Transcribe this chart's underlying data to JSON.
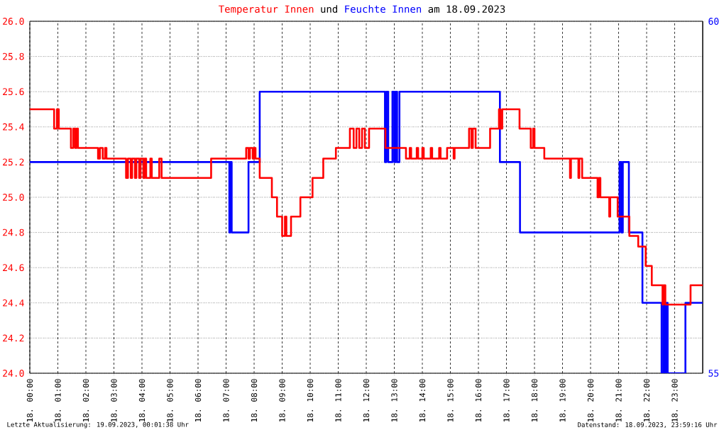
{
  "chart_data": {
    "type": "step",
    "annotations": [
      "und",
      "am 18.09.2023",
      "Letzte Aktualisierung: 19.09.2023, 00:01:38 Uhr",
      "Datenstand: 18.09.2023, 23:59:16 Uhr"
    ],
    "xlim": [
      "2023-09-18T00:00",
      "2023-09-19T00:00"
    ],
    "xticks": [
      {
        "value": "2023-09-18T00:00",
        "label": "18. 00:00"
      },
      {
        "value": "2023-09-18T01:00",
        "label": "18. 01:00"
      },
      {
        "value": "2023-09-18T02:00",
        "label": "18. 02:00"
      },
      {
        "value": "2023-09-18T03:00",
        "label": "18. 03:00"
      },
      {
        "value": "2023-09-18T04:00",
        "label": "18. 04:00"
      },
      {
        "value": "2023-09-18T05:00",
        "label": "18. 05:00"
      },
      {
        "value": "2023-09-18T06:00",
        "label": "18. 06:00"
      },
      {
        "value": "2023-09-18T07:00",
        "label": "18. 07:00"
      },
      {
        "value": "2023-09-18T08:00",
        "label": "18. 08:00"
      },
      {
        "value": "2023-09-18T09:00",
        "label": "18. 09:00"
      },
      {
        "value": "2023-09-18T10:00",
        "label": "18. 10:00"
      },
      {
        "value": "2023-09-18T11:00",
        "label": "18. 11:00"
      },
      {
        "value": "2023-09-18T12:00",
        "label": "18. 12:00"
      },
      {
        "value": "2023-09-18T13:00",
        "label": "18. 13:00"
      },
      {
        "value": "2023-09-18T14:00",
        "label": "18. 14:00"
      },
      {
        "value": "2023-09-18T15:00",
        "label": "18. 15:00"
      },
      {
        "value": "2023-09-18T16:00",
        "label": "18. 16:00"
      },
      {
        "value": "2023-09-18T17:00",
        "label": "18. 17:00"
      },
      {
        "value": "2023-09-18T18:00",
        "label": "18. 18:00"
      },
      {
        "value": "2023-09-18T19:00",
        "label": "18. 19:00"
      },
      {
        "value": "2023-09-18T20:00",
        "label": "18. 20:00"
      },
      {
        "value": "2023-09-18T21:00",
        "label": "18. 21:00"
      },
      {
        "value": "2023-09-18T22:00",
        "label": "18. 22:00"
      },
      {
        "value": "2023-09-18T23:00",
        "label": "18. 23:00"
      }
    ],
    "ylim": [
      24.0,
      26.0
    ],
    "yticks": [
      {
        "value": 24.0,
        "label": "24.0"
      },
      {
        "value": 24.2,
        "label": "24.2"
      },
      {
        "value": 24.4,
        "label": "24.4"
      },
      {
        "value": 24.6,
        "label": "24.6"
      },
      {
        "value": 24.8,
        "label": "24.8"
      },
      {
        "value": 25.0,
        "label": "25.0"
      },
      {
        "value": 25.2,
        "label": "25.2"
      },
      {
        "value": 25.4,
        "label": "25.4"
      },
      {
        "value": 25.6,
        "label": "25.6"
      },
      {
        "value": 25.8,
        "label": "25.8"
      },
      {
        "value": 26.0,
        "label": "26.0"
      }
    ],
    "y2lim": [
      55,
      60
    ],
    "y2ticks": [
      55,
      60
    ],
    "grid": true,
    "series": [
      {
        "name": "Temperatur Innen",
        "color": "#ff0000",
        "x": [
          "2023-09-18T00:00",
          "2023-09-18T00:52",
          "2023-09-18T00:58",
          "2023-09-18T01:02",
          "2023-09-18T01:28",
          "2023-09-18T01:33",
          "2023-09-18T01:37",
          "2023-09-18T01:40",
          "2023-09-18T01:43",
          "2023-09-18T02:26",
          "2023-09-18T02:30",
          "2023-09-18T02:36",
          "2023-09-18T02:41",
          "2023-09-18T02:44",
          "2023-09-18T03:26",
          "2023-09-18T03:30",
          "2023-09-18T03:36",
          "2023-09-18T03:39",
          "2023-09-18T03:45",
          "2023-09-18T03:48",
          "2023-09-18T03:54",
          "2023-09-18T03:57",
          "2023-09-18T04:03",
          "2023-09-18T04:06",
          "2023-09-18T04:09",
          "2023-09-18T04:18",
          "2023-09-18T04:21",
          "2023-09-18T04:37",
          "2023-09-18T04:42",
          "2023-09-18T06:28",
          "2023-09-18T07:43",
          "2023-09-18T07:48",
          "2023-09-18T07:51",
          "2023-09-18T07:57",
          "2023-09-18T08:00",
          "2023-09-18T08:03",
          "2023-09-18T08:12",
          "2023-09-18T08:38",
          "2023-09-18T08:49",
          "2023-09-18T09:00",
          "2023-09-18T09:06",
          "2023-09-18T09:09",
          "2023-09-18T09:19",
          "2023-09-18T09:39",
          "2023-09-18T10:05",
          "2023-09-18T10:28",
          "2023-09-18T10:55",
          "2023-09-18T11:25",
          "2023-09-18T11:33",
          "2023-09-18T11:39",
          "2023-09-18T11:45",
          "2023-09-18T11:51",
          "2023-09-18T11:57",
          "2023-09-18T12:06",
          "2023-09-18T12:41",
          "2023-09-18T13:25",
          "2023-09-18T13:33",
          "2023-09-18T13:36",
          "2023-09-18T13:48",
          "2023-09-18T13:51",
          "2023-09-18T14:00",
          "2023-09-18T14:03",
          "2023-09-18T14:18",
          "2023-09-18T14:21",
          "2023-09-18T14:36",
          "2023-09-18T14:39",
          "2023-09-18T14:53",
          "2023-09-18T15:07",
          "2023-09-18T15:09",
          "2023-09-18T15:40",
          "2023-09-18T15:45",
          "2023-09-18T15:48",
          "2023-09-18T15:54",
          "2023-09-18T16:25",
          "2023-09-18T16:44",
          "2023-09-18T16:47",
          "2023-09-18T16:51",
          "2023-09-18T17:28",
          "2023-09-18T17:52",
          "2023-09-18T17:57",
          "2023-09-18T18:00",
          "2023-09-18T18:21",
          "2023-09-18T19:16",
          "2023-09-18T19:18",
          "2023-09-18T19:34",
          "2023-09-18T19:36",
          "2023-09-18T19:42",
          "2023-09-18T20:15",
          "2023-09-18T20:18",
          "2023-09-18T20:21",
          "2023-09-18T20:40",
          "2023-09-18T20:42",
          "2023-09-18T20:58",
          "2023-09-18T21:23",
          "2023-09-18T21:42",
          "2023-09-18T21:58",
          "2023-09-18T22:11",
          "2023-09-18T22:34",
          "2023-09-18T22:36",
          "2023-09-18T22:40",
          "2023-09-18T23:34",
          "2023-09-19T00:00"
        ],
        "values": [
          25.5,
          25.39,
          25.5,
          25.39,
          25.28,
          25.39,
          25.28,
          25.39,
          25.28,
          25.22,
          25.28,
          25.22,
          25.28,
          25.22,
          25.11,
          25.22,
          25.11,
          25.22,
          25.11,
          25.22,
          25.11,
          25.22,
          25.11,
          25.22,
          25.11,
          25.22,
          25.11,
          25.22,
          25.11,
          25.22,
          25.28,
          25.22,
          25.28,
          25.22,
          25.28,
          25.22,
          25.11,
          25.0,
          24.89,
          24.78,
          24.89,
          24.78,
          24.89,
          25.0,
          25.11,
          25.22,
          25.28,
          25.39,
          25.28,
          25.39,
          25.28,
          25.39,
          25.28,
          25.39,
          25.28,
          25.22,
          25.28,
          25.22,
          25.28,
          25.22,
          25.28,
          25.22,
          25.28,
          25.22,
          25.28,
          25.22,
          25.28,
          25.22,
          25.28,
          25.39,
          25.28,
          25.39,
          25.28,
          25.39,
          25.5,
          25.39,
          25.5,
          25.39,
          25.28,
          25.39,
          25.28,
          25.22,
          25.11,
          25.22,
          25.11,
          25.22,
          25.11,
          25.0,
          25.11,
          25.0,
          24.89,
          25.0,
          24.89,
          24.78,
          24.72,
          24.61,
          24.5,
          24.39,
          24.5,
          24.39,
          24.5,
          24.5
        ]
      },
      {
        "name": "Feuchte Innen",
        "color": "#0000ff",
        "axis": "y2",
        "x": [
          "2023-09-18T00:00",
          "2023-09-18T07:07",
          "2023-09-18T07:09",
          "2023-09-18T07:12",
          "2023-09-18T07:48",
          "2023-09-18T08:12",
          "2023-09-18T12:40",
          "2023-09-18T12:43",
          "2023-09-18T12:47",
          "2023-09-18T12:56",
          "2023-09-18T13:00",
          "2023-09-18T13:03",
          "2023-09-18T13:06",
          "2023-09-18T13:11",
          "2023-09-18T16:46",
          "2023-09-18T17:29",
          "2023-09-18T21:02",
          "2023-09-18T21:06",
          "2023-09-18T21:09",
          "2023-09-18T21:22",
          "2023-09-18T21:51",
          "2023-09-18T22:32",
          "2023-09-18T22:36",
          "2023-09-18T22:39",
          "2023-09-18T22:42",
          "2023-09-18T22:45",
          "2023-09-18T23:23",
          "2023-09-19T00:00"
        ],
        "values": [
          58,
          57,
          58,
          57,
          58,
          59,
          58,
          59,
          58,
          59,
          58,
          59,
          58,
          59,
          58,
          57,
          58,
          57,
          58,
          57,
          56,
          55,
          56,
          55,
          56,
          55,
          56,
          56
        ]
      }
    ]
  }
}
